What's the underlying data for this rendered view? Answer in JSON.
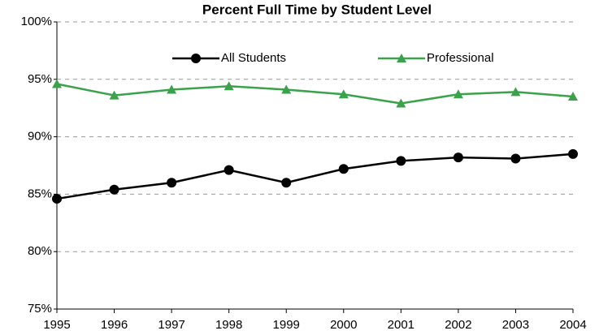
{
  "chart_data": {
    "type": "line",
    "title": "Percent Full Time by Student Level",
    "x": [
      1995,
      1996,
      1997,
      1998,
      1999,
      2000,
      2001,
      2002,
      2003,
      2004
    ],
    "xlim": [
      1995,
      2004
    ],
    "xticks": [
      1995,
      1996,
      1997,
      1998,
      1999,
      2000,
      2001,
      2002,
      2003,
      2004
    ],
    "ylim": [
      75,
      100
    ],
    "yticks": [
      {
        "value": 75,
        "label": "75%"
      },
      {
        "value": 80,
        "label": "80%"
      },
      {
        "value": 85,
        "label": "85%"
      },
      {
        "value": 90,
        "label": "90%"
      },
      {
        "value": 95,
        "label": "95%"
      },
      {
        "value": 100,
        "label": "100%"
      }
    ],
    "grid": true,
    "legend": "top",
    "series": [
      {
        "name": "All Students",
        "color": "#000000",
        "marker": "circle",
        "values": [
          84.6,
          85.4,
          86.0,
          87.1,
          86.0,
          87.2,
          87.9,
          88.2,
          88.1,
          88.5
        ]
      },
      {
        "name": "Professional",
        "color": "#3aa24a",
        "marker": "triangle",
        "values": [
          94.6,
          93.6,
          94.1,
          94.4,
          94.1,
          93.7,
          92.9,
          93.7,
          93.9,
          93.5
        ]
      }
    ]
  }
}
